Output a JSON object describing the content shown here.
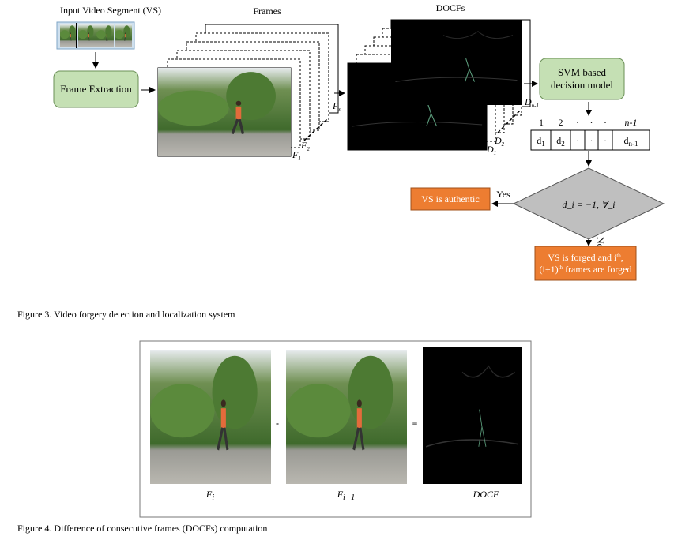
{
  "figure3": {
    "input_label": "Input Video Segment (VS)",
    "frame_extraction": "Frame Extraction",
    "frames_label": "Frames",
    "docfs_label": "DOCFs",
    "svm": "SVM based decision model",
    "frame_labels": [
      {
        "base": "F",
        "sub": "1"
      },
      {
        "base": "F",
        "sub": "2"
      },
      {
        "base": "F",
        "sub": "n"
      }
    ],
    "docf_labels": [
      {
        "base": "D",
        "sub": "1"
      },
      {
        "base": "D",
        "sub": "2"
      },
      {
        "base": "D",
        "sub": "n-1"
      }
    ],
    "index_row": [
      "1",
      "2",
      "·",
      "·",
      "·",
      "n-1"
    ],
    "cells": [
      {
        "base": "d",
        "sub": "1"
      },
      {
        "base": "d",
        "sub": "2"
      },
      {
        "base": "·",
        "sub": ""
      },
      {
        "base": "·",
        "sub": ""
      },
      {
        "base": "·",
        "sub": ""
      },
      {
        "base": "d",
        "sub": "n-1"
      }
    ],
    "decision": "d_i = −1, ∀_i",
    "yes": "Yes",
    "no": "No",
    "authentic": "VS is authentic",
    "forged_line1": "VS is forged and i",
    "forged_sup1": "th",
    "forged_line2a": "(i+1)",
    "forged_sup2": "th",
    "forged_line2b": " frames are forged",
    "caption": "Figure 3. Video forgery detection and localization system"
  },
  "figure4": {
    "minus": "-",
    "equals": "=",
    "labels": [
      {
        "base": "F",
        "sub": "i"
      },
      {
        "base": "F",
        "sub": "i+1"
      },
      {
        "base": "DOCF",
        "sub": ""
      }
    ],
    "caption": "Figure 4. Difference of consecutive frames (DOCFs) computation"
  }
}
